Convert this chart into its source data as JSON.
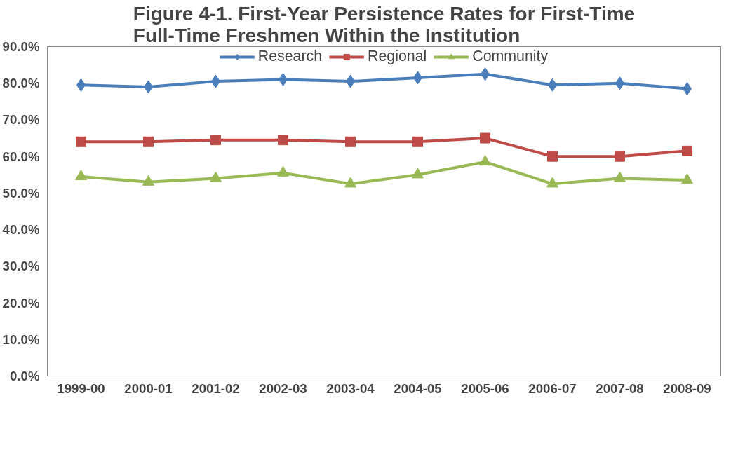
{
  "chart_data": {
    "type": "line",
    "title": "Figure 4-1. First-Year Persistence Rates for First-Time\nFull-Time Freshmen Within the Institution",
    "categories": [
      "1999-00",
      "2000-01",
      "2001-02",
      "2002-03",
      "2003-04",
      "2004-05",
      "2005-06",
      "2006-07",
      "2007-08",
      "2008-09"
    ],
    "series": [
      {
        "name": "Research",
        "color": "#4a7ebb",
        "marker": "diamond",
        "values": [
          79.5,
          79,
          80.5,
          81,
          80.5,
          81.5,
          82.5,
          79.5,
          80,
          78.5
        ]
      },
      {
        "name": "Regional",
        "color": "#be4b48",
        "marker": "square",
        "values": [
          64,
          64,
          64.5,
          64.5,
          64,
          64,
          65,
          60,
          60,
          61.5
        ]
      },
      {
        "name": "Community",
        "color": "#98b954",
        "marker": "triangle",
        "values": [
          54.5,
          53,
          54,
          55.5,
          52.5,
          55,
          58.5,
          52.5,
          54,
          53.5
        ]
      }
    ],
    "ylim": [
      0,
      90
    ],
    "yticks": [
      {
        "value": 0,
        "label": "0.0%"
      },
      {
        "value": 10,
        "label": "10.0%"
      },
      {
        "value": 20,
        "label": "20.0%"
      },
      {
        "value": 30,
        "label": "30.0%"
      },
      {
        "value": 40,
        "label": "40.0%"
      },
      {
        "value": 50,
        "label": "50.0%"
      },
      {
        "value": 60,
        "label": "60.0%"
      },
      {
        "value": 70,
        "label": "70.0%"
      },
      {
        "value": 80,
        "label": "80.0%"
      },
      {
        "value": 90,
        "label": "90.0%"
      }
    ],
    "grid": false,
    "legend": "top",
    "line_style": "solid"
  }
}
